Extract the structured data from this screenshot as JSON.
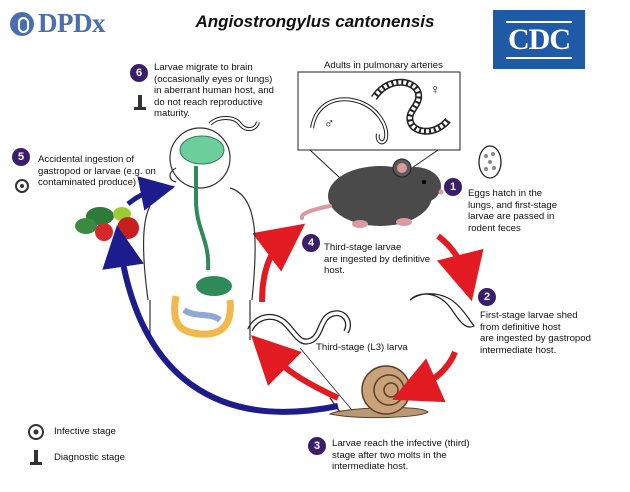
{
  "header": {
    "logo_text": "DPDx",
    "title": "Angiostrongylus cantonensis",
    "cdc_text": "CDC"
  },
  "adults": {
    "caption": "Adults in pulmonary arteries",
    "male_symbol": "♂",
    "female_symbol": "♀"
  },
  "steps": [
    {
      "number": "1",
      "text_lines": [
        "Eggs hatch in the",
        "lungs, and first-stage",
        "larvae are passed in",
        "rodent feces"
      ]
    },
    {
      "number": "2",
      "text_lines": [
        "First-stage larvae shed",
        "from definitive host",
        "are ingested by gastropod",
        "intermediate host."
      ]
    },
    {
      "number": "3",
      "text_lines": [
        "Larvae reach the infective (third)",
        "stage after two molts in the",
        "intermediate host."
      ]
    },
    {
      "number": "4",
      "text_lines": [
        "Third-stage larvae",
        "are ingested by definitive",
        "host."
      ]
    },
    {
      "number": "5",
      "text_lines": [
        "Accidental ingestion of",
        "gastropod or larvae (e.g. on",
        "contaminated produce)"
      ]
    },
    {
      "number": "6",
      "text_lines": [
        "Larvae migrate to brain",
        "(occasionally eyes or lungs)",
        "in aberrant human host, and",
        "do not reach reproductive",
        "maturity."
      ]
    }
  ],
  "l3_label": "Third-stage (L3) larva",
  "legend": {
    "infective": "Infective stage",
    "diagnostic": "Diagnostic stage"
  },
  "colors": {
    "step_circle": "#3b1e6b",
    "cycle_arrow": "#e21b23",
    "human_arrow": "#1c1c8c",
    "brain": "#6ccf9b",
    "logo": "#4a6fb0",
    "cdc": "#1f5aa6"
  },
  "icons": [
    "biohazard-icon",
    "microscope-icon"
  ]
}
